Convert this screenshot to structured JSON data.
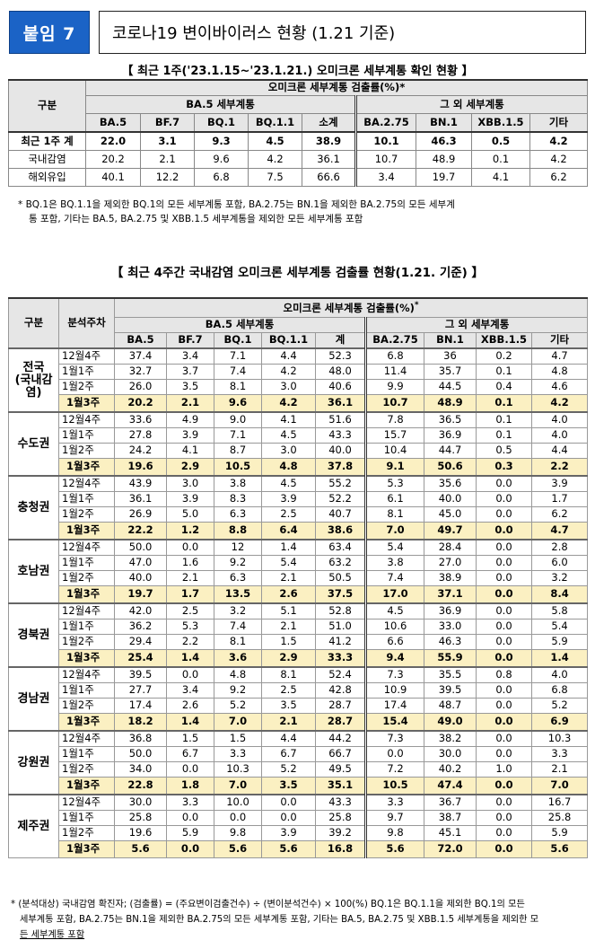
{
  "header": {
    "badge": "붙임 7",
    "title": "코로나19 변이바이러스 현황 (1.21 기준)"
  },
  "table1": {
    "title": "【 최근 1주('23.1.15~'23.1.21.) 오미크론 세부계통 확인 현황 】",
    "col_group": "구분",
    "top_header": "오미크론 세부계통 검출률(%)*",
    "groupA": "BA.5 세부계통",
    "groupB": "그 외 세부계통",
    "columns": [
      "BA.5",
      "BF.7",
      "BQ.1",
      "BQ.1.1",
      "소계",
      "BA.2.75",
      "BN.1",
      "XBB.1.5",
      "기타"
    ],
    "rows": [
      {
        "label": "최근 1주 계",
        "values": [
          "22.0",
          "3.1",
          "9.3",
          "4.5",
          "38.9",
          "10.1",
          "46.3",
          "0.5",
          "4.2"
        ]
      },
      {
        "label": "국내감염",
        "values": [
          "20.2",
          "2.1",
          "9.6",
          "4.2",
          "36.1",
          "10.7",
          "48.9",
          "0.1",
          "4.2"
        ]
      },
      {
        "label": "해외유입",
        "values": [
          "40.1",
          "12.2",
          "6.8",
          "7.5",
          "66.6",
          "3.4",
          "19.7",
          "4.1",
          "6.2"
        ]
      }
    ],
    "note_l1": "* BQ.1은 BQ.1.1을 제외한 BQ.1의 모든 세부계통 포함, BA.2.75는 BN.1을 제외한 BA.2.75의 모든 세부계",
    "note_l2": "통 포함, 기타는 BA.5, BA.2.75 및 XBB.1.5 세부계통을 제외한 모든 세부계통 포함"
  },
  "table2": {
    "title": "【 최근 4주간 국내감염 오미크론 세부계통 검출률 현황(1.21. 기준) 】",
    "col_group": "구분",
    "col_week": "분석주차",
    "top_header": "오미크론 세부계통 검출률(%)",
    "star": "*",
    "groupA": "BA.5 세부계통",
    "groupB": "그 외 세부계통",
    "columns": [
      "BA.5",
      "BF.7",
      "BQ.1",
      "BQ.1.1",
      "계",
      "BA.2.75",
      "BN.1",
      "XBB.1.5",
      "기타"
    ],
    "regions": [
      {
        "name": "전국\n(국내감\n염)",
        "rows": [
          {
            "week": "12월4주",
            "values": [
              "37.4",
              "3.4",
              "7.1",
              "4.4",
              "52.3",
              "6.8",
              "36",
              "0.2",
              "4.7"
            ]
          },
          {
            "week": "1월1주",
            "values": [
              "32.7",
              "3.7",
              "7.4",
              "4.2",
              "48.0",
              "11.4",
              "35.7",
              "0.1",
              "4.8"
            ]
          },
          {
            "week": "1월2주",
            "values": [
              "26.0",
              "3.5",
              "8.1",
              "3.0",
              "40.6",
              "9.9",
              "44.5",
              "0.4",
              "4.6"
            ]
          },
          {
            "week": "1월3주",
            "values": [
              "20.2",
              "2.1",
              "9.6",
              "4.2",
              "36.1",
              "10.7",
              "48.9",
              "0.1",
              "4.2"
            ]
          }
        ]
      },
      {
        "name": "수도권",
        "rows": [
          {
            "week": "12월4주",
            "values": [
              "33.6",
              "4.9",
              "9.0",
              "4.1",
              "51.6",
              "7.8",
              "36.5",
              "0.1",
              "4.0"
            ]
          },
          {
            "week": "1월1주",
            "values": [
              "27.8",
              "3.9",
              "7.1",
              "4.5",
              "43.3",
              "15.7",
              "36.9",
              "0.1",
              "4.0"
            ]
          },
          {
            "week": "1월2주",
            "values": [
              "24.2",
              "4.1",
              "8.7",
              "3.0",
              "40.0",
              "10.4",
              "44.7",
              "0.5",
              "4.4"
            ]
          },
          {
            "week": "1월3주",
            "values": [
              "19.6",
              "2.9",
              "10.5",
              "4.8",
              "37.8",
              "9.1",
              "50.6",
              "0.3",
              "2.2"
            ]
          }
        ]
      },
      {
        "name": "충청권",
        "rows": [
          {
            "week": "12월4주",
            "values": [
              "43.9",
              "3.0",
              "3.8",
              "4.5",
              "55.2",
              "5.3",
              "35.6",
              "0.0",
              "3.9"
            ]
          },
          {
            "week": "1월1주",
            "values": [
              "36.1",
              "3.9",
              "8.3",
              "3.9",
              "52.2",
              "6.1",
              "40.0",
              "0.0",
              "1.7"
            ]
          },
          {
            "week": "1월2주",
            "values": [
              "26.9",
              "5.0",
              "6.3",
              "2.5",
              "40.7",
              "8.1",
              "45.0",
              "0.0",
              "6.2"
            ]
          },
          {
            "week": "1월3주",
            "values": [
              "22.2",
              "1.2",
              "8.8",
              "6.4",
              "38.6",
              "7.0",
              "49.7",
              "0.0",
              "4.7"
            ]
          }
        ]
      },
      {
        "name": "호남권",
        "rows": [
          {
            "week": "12월4주",
            "values": [
              "50.0",
              "0.0",
              "12",
              "1.4",
              "63.4",
              "5.4",
              "28.4",
              "0.0",
              "2.8"
            ]
          },
          {
            "week": "1월1주",
            "values": [
              "47.0",
              "1.6",
              "9.2",
              "5.4",
              "63.2",
              "3.8",
              "27.0",
              "0.0",
              "6.0"
            ]
          },
          {
            "week": "1월2주",
            "values": [
              "40.0",
              "2.1",
              "6.3",
              "2.1",
              "50.5",
              "7.4",
              "38.9",
              "0.0",
              "3.2"
            ]
          },
          {
            "week": "1월3주",
            "values": [
              "19.7",
              "1.7",
              "13.5",
              "2.6",
              "37.5",
              "17.0",
              "37.1",
              "0.0",
              "8.4"
            ]
          }
        ]
      },
      {
        "name": "경북권",
        "rows": [
          {
            "week": "12월4주",
            "values": [
              "42.0",
              "2.5",
              "3.2",
              "5.1",
              "52.8",
              "4.5",
              "36.9",
              "0.0",
              "5.8"
            ]
          },
          {
            "week": "1월1주",
            "values": [
              "36.2",
              "5.3",
              "7.4",
              "2.1",
              "51.0",
              "10.6",
              "33.0",
              "0.0",
              "5.4"
            ]
          },
          {
            "week": "1월2주",
            "values": [
              "29.4",
              "2.2",
              "8.1",
              "1.5",
              "41.2",
              "6.6",
              "46.3",
              "0.0",
              "5.9"
            ]
          },
          {
            "week": "1월3주",
            "values": [
              "25.4",
              "1.4",
              "3.6",
              "2.9",
              "33.3",
              "9.4",
              "55.9",
              "0.0",
              "1.4"
            ]
          }
        ]
      },
      {
        "name": "경남권",
        "rows": [
          {
            "week": "12월4주",
            "values": [
              "39.5",
              "0.0",
              "4.8",
              "8.1",
              "52.4",
              "7.3",
              "35.5",
              "0.8",
              "4.0"
            ]
          },
          {
            "week": "1월1주",
            "values": [
              "27.7",
              "3.4",
              "9.2",
              "2.5",
              "42.8",
              "10.9",
              "39.5",
              "0.0",
              "6.8"
            ]
          },
          {
            "week": "1월2주",
            "values": [
              "17.4",
              "2.6",
              "5.2",
              "3.5",
              "28.7",
              "17.4",
              "48.7",
              "0.0",
              "5.2"
            ]
          },
          {
            "week": "1월3주",
            "values": [
              "18.2",
              "1.4",
              "7.0",
              "2.1",
              "28.7",
              "15.4",
              "49.0",
              "0.0",
              "6.9"
            ]
          }
        ]
      },
      {
        "name": "강원권",
        "rows": [
          {
            "week": "12월4주",
            "values": [
              "36.8",
              "1.5",
              "1.5",
              "4.4",
              "44.2",
              "7.3",
              "38.2",
              "0.0",
              "10.3"
            ]
          },
          {
            "week": "1월1주",
            "values": [
              "50.0",
              "6.7",
              "3.3",
              "6.7",
              "66.7",
              "0.0",
              "30.0",
              "0.0",
              "3.3"
            ]
          },
          {
            "week": "1월2주",
            "values": [
              "34.0",
              "0.0",
              "10.3",
              "5.2",
              "49.5",
              "7.2",
              "40.2",
              "1.0",
              "2.1"
            ]
          },
          {
            "week": "1월3주",
            "values": [
              "22.8",
              "1.8",
              "7.0",
              "3.5",
              "35.1",
              "10.5",
              "47.4",
              "0.0",
              "7.0"
            ]
          }
        ]
      },
      {
        "name": "제주권",
        "rows": [
          {
            "week": "12월4주",
            "values": [
              "30.0",
              "3.3",
              "10.0",
              "0.0",
              "43.3",
              "3.3",
              "36.7",
              "0.0",
              "16.7"
            ]
          },
          {
            "week": "1월1주",
            "values": [
              "25.8",
              "0.0",
              "0.0",
              "0.0",
              "25.8",
              "9.7",
              "38.7",
              "0.0",
              "25.8"
            ]
          },
          {
            "week": "1월2주",
            "values": [
              "19.6",
              "5.9",
              "9.8",
              "3.9",
              "39.2",
              "9.8",
              "45.1",
              "0.0",
              "5.9"
            ]
          },
          {
            "week": "1월3주",
            "values": [
              "5.6",
              "0.0",
              "5.6",
              "5.6",
              "16.8",
              "5.6",
              "72.0",
              "0.0",
              "5.6"
            ]
          }
        ]
      }
    ],
    "note_l1": "* (분석대상) 국내감염 확진자; (검출률) = (주요변이검출건수) ÷ (변이분석건수) × 100(%) BQ.1은 BQ.1.1을 제외한 BQ.1의 모든",
    "note_l2": "세부계통 포함, BA.2.75는 BN.1을 제외한 BA.2.75의 모든 세부계통 포함, 기타는 BA.5, BA.2.75 및 XBB.1.5 세부계통을 제외한 모",
    "note_l3": "든 세부계통 포함"
  }
}
